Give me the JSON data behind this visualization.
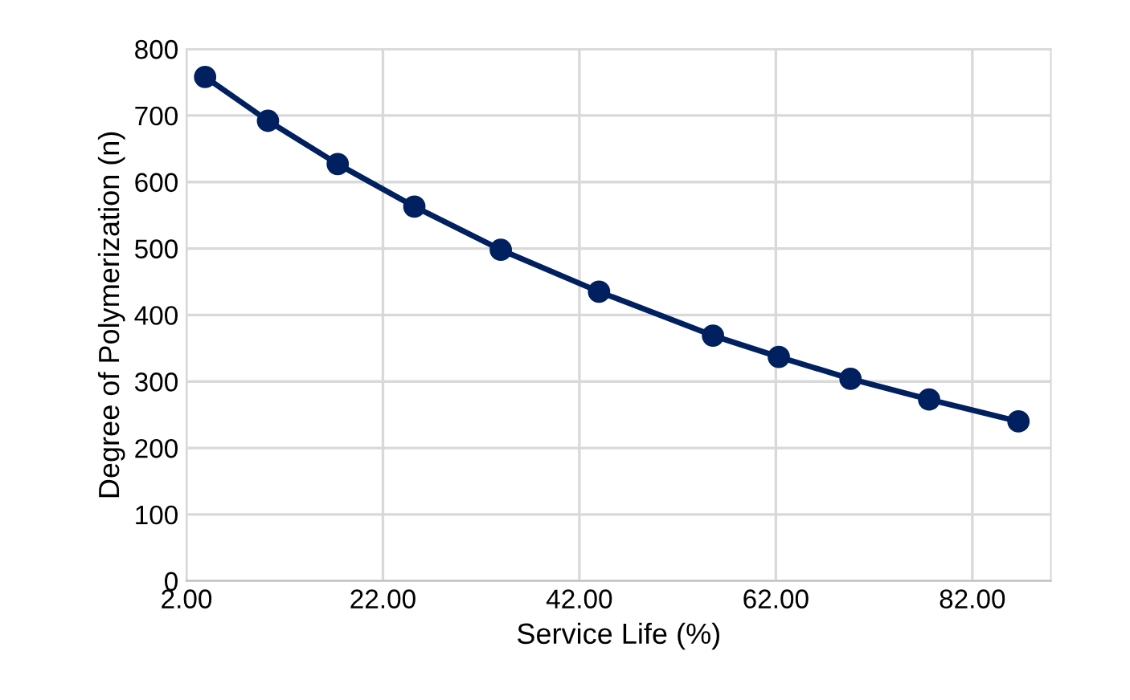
{
  "chart_data": {
    "type": "line",
    "xlabel": "Service Life (%)",
    "ylabel": "Degree of Polymerization (n)",
    "x": [
      3.9,
      10.3,
      17.4,
      25.2,
      34.0,
      44.0,
      55.6,
      62.3,
      69.6,
      77.6,
      86.7
    ],
    "series": [
      {
        "color": "#002060",
        "values": [
          758,
          692,
          627,
          563,
          498,
          435,
          369,
          337,
          304,
          273,
          240
        ]
      }
    ],
    "xlim": [
      2,
      90
    ],
    "xticks": [
      {
        "value": 2,
        "label": "2.00"
      },
      {
        "value": 22,
        "label": "22.00"
      },
      {
        "value": 42,
        "label": "42.00"
      },
      {
        "value": 62,
        "label": "62.00"
      },
      {
        "value": 82,
        "label": "82.00"
      }
    ],
    "ylim": [
      0,
      800
    ],
    "yticks": [
      0,
      100,
      200,
      300,
      400,
      500,
      600,
      700,
      800
    ],
    "grid": true,
    "marker": "circle",
    "line_style": "solid",
    "legend": false
  }
}
